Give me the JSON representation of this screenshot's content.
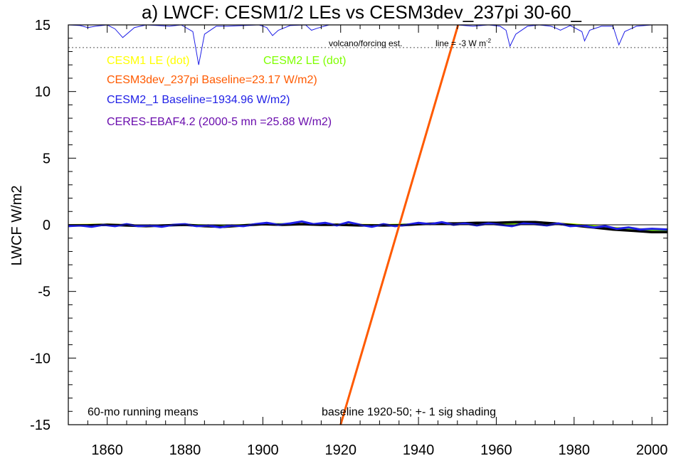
{
  "chart_data": {
    "type": "line",
    "title": "a) LWCF: CESM1/2 LEs vs CESM3dev_237pi 30-60_",
    "ylabel": "LWCF W/m2",
    "xlabel": "",
    "xlim": [
      1850,
      2004
    ],
    "ylim": [
      -15,
      15
    ],
    "x_ticks": [
      1860,
      1880,
      1900,
      1920,
      1940,
      1960,
      1980,
      2000
    ],
    "y_ticks": [
      15,
      10,
      5,
      0,
      -5,
      -10,
      -15
    ],
    "grid": false,
    "legend": [
      {
        "label": "CESM1 LE (dot)",
        "color": "#ffff00"
      },
      {
        "label": "CESM2 LE (dot)",
        "color": "#7fff00"
      },
      {
        "label": "CESM3dev_237pi Baseline=23.17 W/m2)",
        "color": "#ff5a00"
      },
      {
        "label": "CESM2_1 Baseline=1934.96 W/m2)",
        "color": "#1e1ee6"
      },
      {
        "label": "CERES-EBAF4.2 (2000-5 mn =25.88 W/m2)",
        "color": "#6a0dad"
      }
    ],
    "annotations": {
      "volcano": "volcano/forcing est.",
      "line_prefix": "line = -3 W m",
      "line_sup": "-2",
      "running": "60-mo running means",
      "baseline": "baseline 1920-50; +- 1 sig shading"
    },
    "series": [
      {
        "key": "cesm1_le",
        "color": "#ffff00",
        "x": [
          1850,
          1860,
          1870,
          1880,
          1890,
          1900,
          1910,
          1920,
          1930,
          1940,
          1950,
          1960,
          1970,
          1980,
          1990,
          2000,
          2004
        ],
        "y": [
          0.0,
          0.05,
          -0.05,
          0.0,
          -0.05,
          0.05,
          0.1,
          0.05,
          0.0,
          0.05,
          0.1,
          0.15,
          0.2,
          0.05,
          -0.2,
          -0.35,
          -0.4
        ]
      },
      {
        "key": "cesm2_le",
        "color": "#7fff00",
        "x": [
          1850,
          1860,
          1870,
          1880,
          1890,
          1900,
          1910,
          1920,
          1930,
          1940,
          1950,
          1960,
          1970,
          1980,
          1990,
          2000,
          2004
        ],
        "y": [
          -0.05,
          0.0,
          -0.1,
          0.0,
          -0.1,
          0.05,
          0.05,
          0.0,
          -0.05,
          0.05,
          0.1,
          0.1,
          0.15,
          0.0,
          -0.25,
          -0.4,
          -0.45
        ]
      },
      {
        "key": "ensemble_mean",
        "color": "#000000",
        "x": [
          1850,
          1855,
          1860,
          1865,
          1870,
          1875,
          1880,
          1885,
          1890,
          1895,
          1900,
          1905,
          1910,
          1915,
          1920,
          1925,
          1930,
          1935,
          1940,
          1945,
          1950,
          1955,
          1960,
          1965,
          1970,
          1975,
          1980,
          1985,
          1990,
          1995,
          2000,
          2004
        ],
        "y": [
          -0.05,
          -0.05,
          0.0,
          -0.05,
          -0.1,
          -0.05,
          0.0,
          -0.1,
          -0.15,
          -0.05,
          0.05,
          0.0,
          0.05,
          0.0,
          0.0,
          -0.05,
          -0.05,
          -0.05,
          0.05,
          0.1,
          0.1,
          0.15,
          0.15,
          0.2,
          0.2,
          0.1,
          -0.05,
          -0.2,
          -0.35,
          -0.45,
          -0.55,
          -0.55
        ]
      },
      {
        "key": "cesm2_1",
        "color": "#1e1ee6",
        "x": [
          1850,
          1853,
          1856,
          1859,
          1862,
          1865,
          1868,
          1871,
          1874,
          1877,
          1880,
          1883,
          1886,
          1889,
          1892,
          1895,
          1898,
          1901,
          1904,
          1907,
          1910,
          1913,
          1916,
          1919,
          1922,
          1925,
          1928,
          1931,
          1934,
          1937,
          1940,
          1943,
          1946,
          1949,
          1952,
          1955,
          1958,
          1961,
          1964,
          1967,
          1970,
          1973,
          1976,
          1979,
          1982,
          1985,
          1988,
          1991,
          1994,
          1997,
          2000,
          2004
        ],
        "y": [
          -0.1,
          -0.05,
          -0.15,
          0.0,
          -0.1,
          0.05,
          -0.1,
          -0.05,
          -0.15,
          0.0,
          0.05,
          -0.1,
          -0.05,
          -0.2,
          -0.05,
          -0.1,
          0.05,
          0.15,
          0.0,
          0.1,
          0.25,
          0.05,
          0.15,
          -0.05,
          0.2,
          0.0,
          -0.15,
          0.05,
          -0.1,
          0.0,
          0.15,
          0.05,
          0.2,
          0.0,
          0.1,
          -0.05,
          0.1,
          0.0,
          -0.1,
          0.1,
          0.05,
          -0.05,
          0.1,
          -0.1,
          -0.05,
          -0.2,
          -0.1,
          -0.3,
          -0.2,
          -0.35,
          -0.3,
          -0.35
        ]
      },
      {
        "key": "cesm3dev_line",
        "color": "#ff5a00",
        "x": [
          1920,
          1950.2
        ],
        "y": [
          -15,
          15
        ]
      }
    ],
    "volcano": {
      "color": "#1e1ee6",
      "x": [
        1850,
        1853,
        1855,
        1857,
        1860,
        1862,
        1864,
        1867,
        1870,
        1873,
        1876,
        1879,
        1882,
        1883.5,
        1885,
        1888,
        1891,
        1895,
        1899,
        1901,
        1902.5,
        1904,
        1907,
        1911,
        1912.5,
        1914,
        1917,
        1921,
        1925,
        1930,
        1935,
        1940,
        1945,
        1950,
        1954,
        1958,
        1961,
        1962.5,
        1963.5,
        1965,
        1968,
        1971,
        1974,
        1975,
        1976.5,
        1979,
        1982,
        1982.7,
        1984,
        1987,
        1990,
        1991.5,
        1993,
        1996,
        2000,
        2004
      ],
      "y": [
        15,
        14.95,
        14.8,
        14.9,
        15,
        14.7,
        14.05,
        14.8,
        15,
        14.95,
        14.9,
        15,
        14.5,
        12.0,
        14.3,
        14.9,
        14.9,
        14.95,
        15,
        14.8,
        14.2,
        14.6,
        14.95,
        15,
        14.6,
        14.75,
        15,
        15,
        15,
        15,
        15,
        15,
        15,
        15,
        14.9,
        15,
        14.9,
        14.6,
        13.4,
        14.3,
        14.9,
        15,
        14.9,
        14.8,
        14.6,
        14.95,
        14.5,
        13.8,
        14.6,
        14.9,
        14.9,
        13.5,
        14.5,
        14.9,
        15,
        15
      ]
    },
    "dotted_line_y": 13.3
  }
}
